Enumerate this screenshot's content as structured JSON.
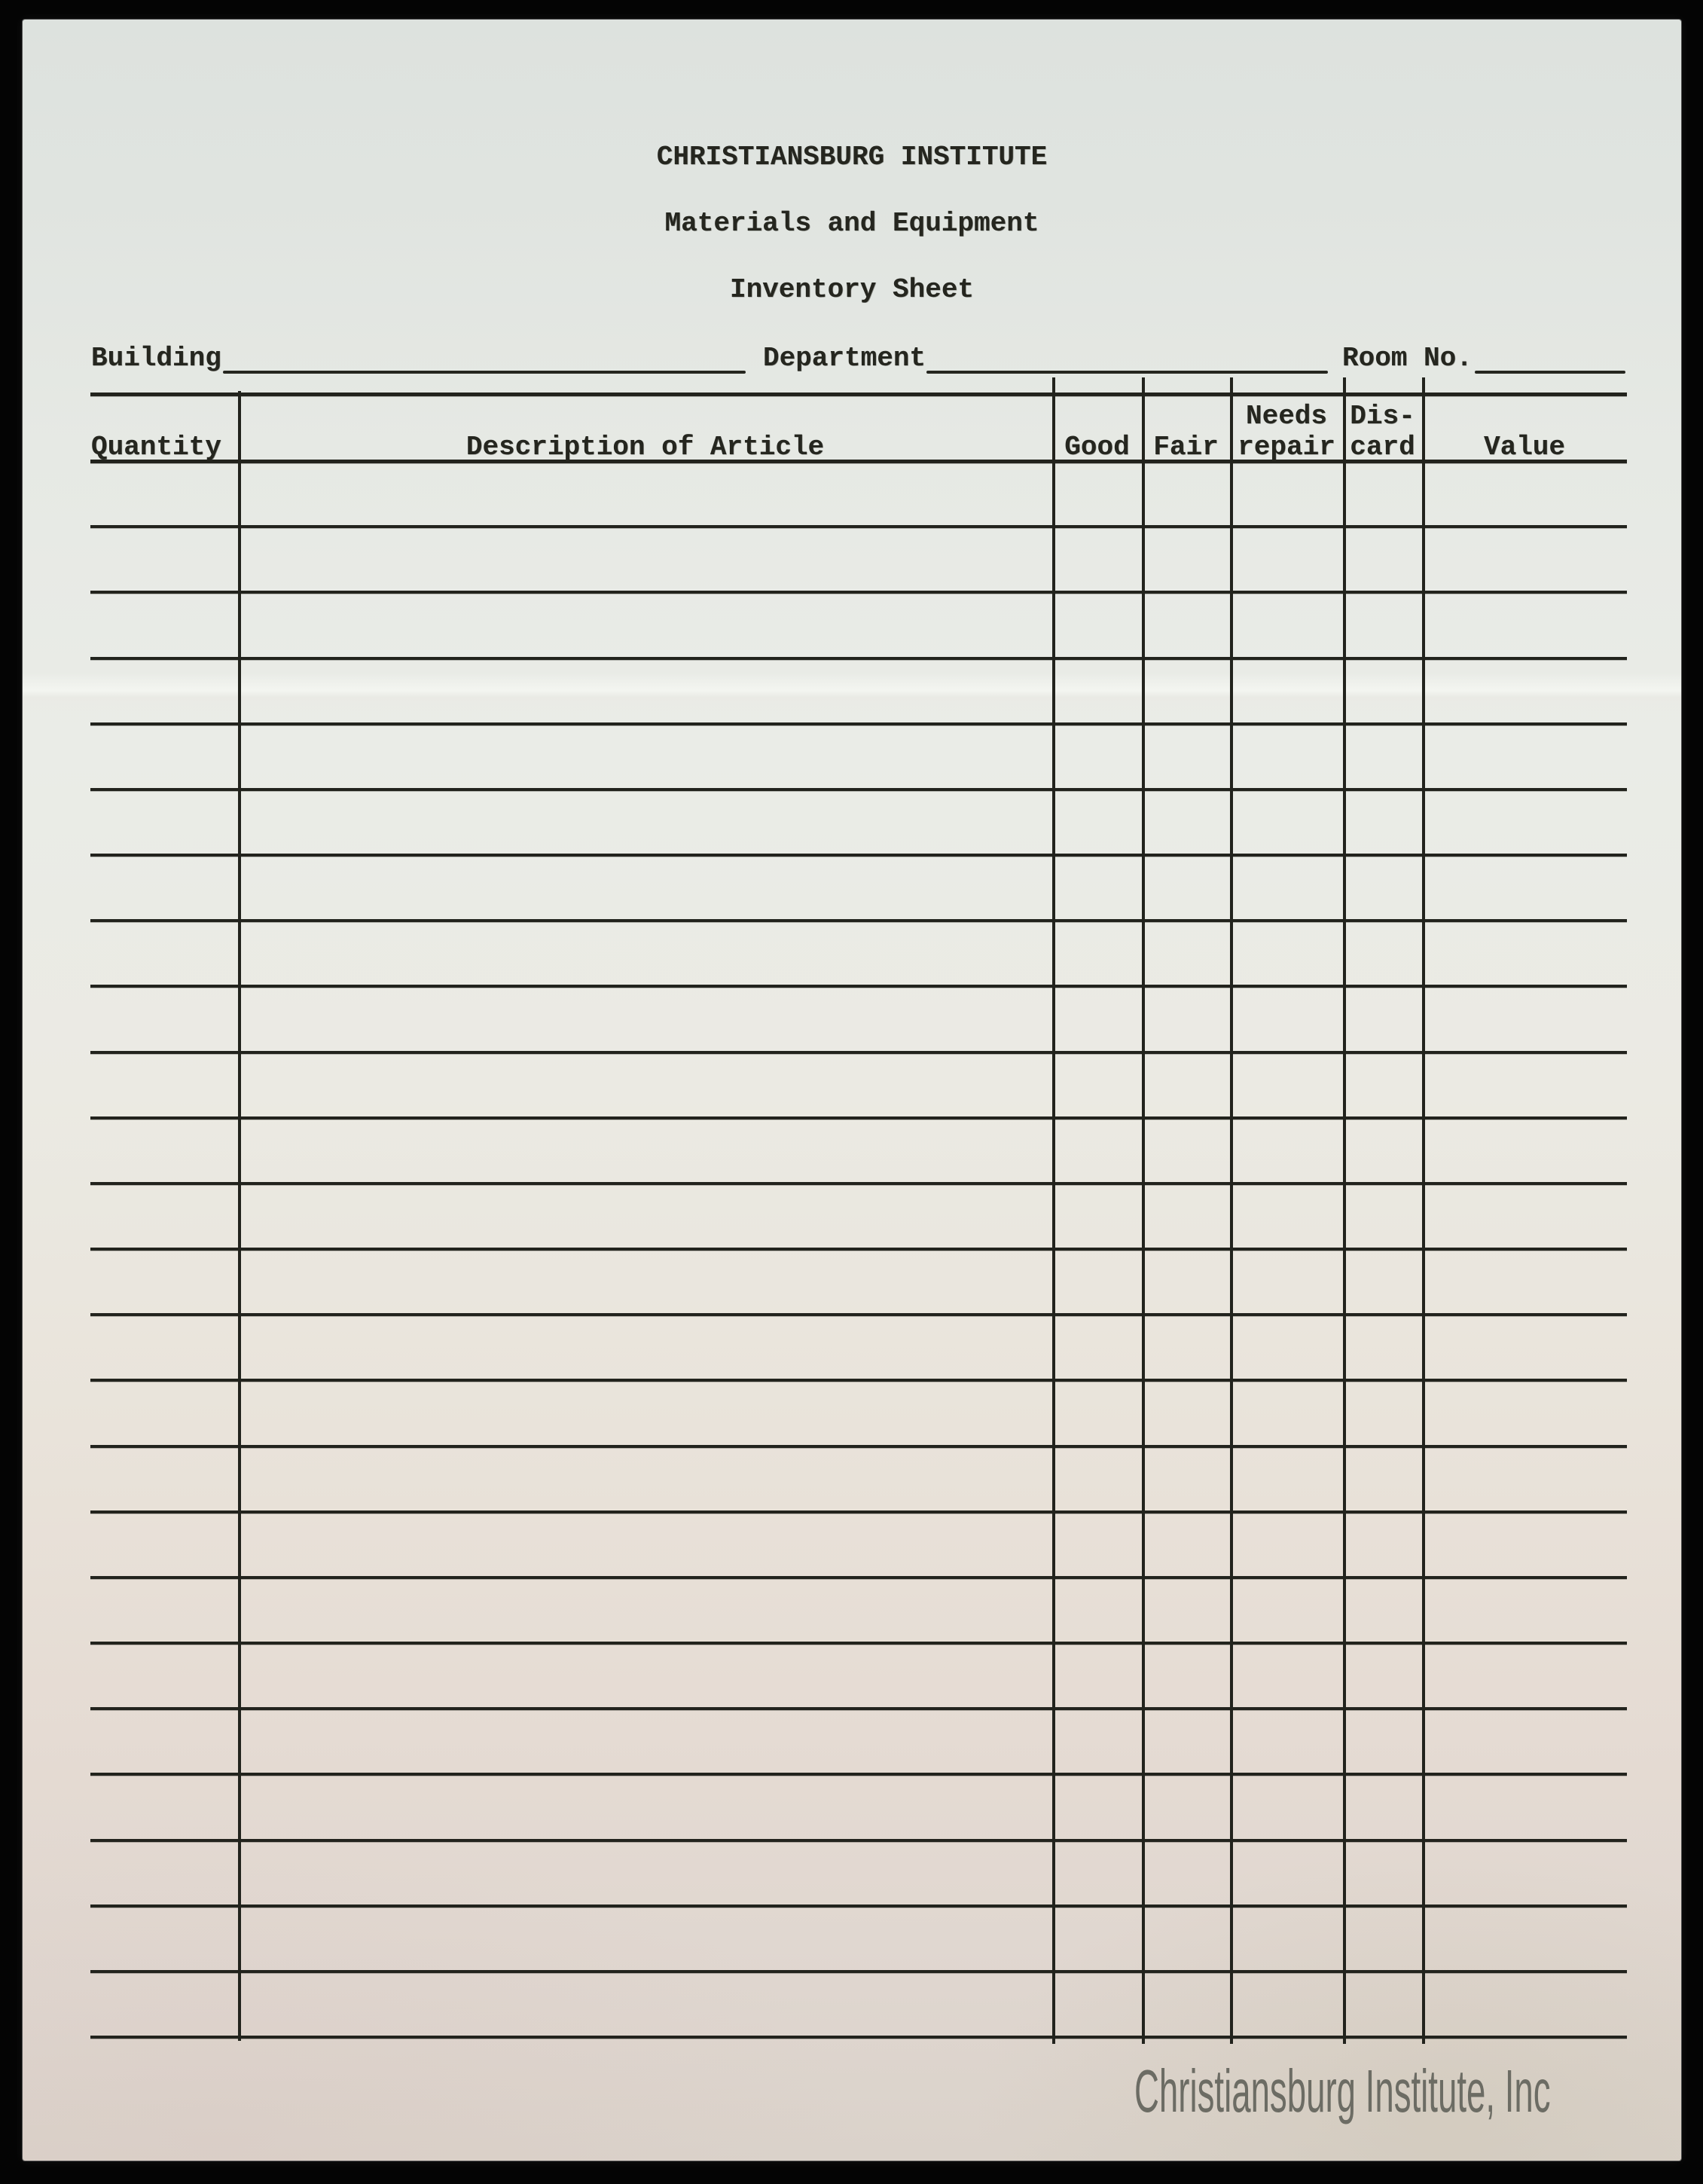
{
  "document": {
    "title_lines": [
      "CHRISTIANSBURG INSTITUTE",
      "Materials and Equipment",
      "Inventory Sheet"
    ],
    "fields": {
      "building": {
        "label": "Building",
        "value": ""
      },
      "department": {
        "label": "Department",
        "value": ""
      },
      "room_no": {
        "label": "Room No.",
        "value": ""
      }
    },
    "table": {
      "header": {
        "quantity": "Quantity",
        "description": "Description of Article",
        "good": "Good",
        "fair": "Fair",
        "needs_line1": "Needs",
        "needs_line2": "repair",
        "discard_line1": "Dis-",
        "discard_line2": "card",
        "value": "Value"
      },
      "row_count": 24,
      "rows": []
    },
    "watermark": "Christiansburg Institute, Inc"
  },
  "colors": {
    "ink": "#25261f",
    "paper_top": "#dde2de",
    "paper_bottom": "#dad2ca",
    "watermark_gray": "#6c6c64",
    "scan_background": "#040404"
  }
}
